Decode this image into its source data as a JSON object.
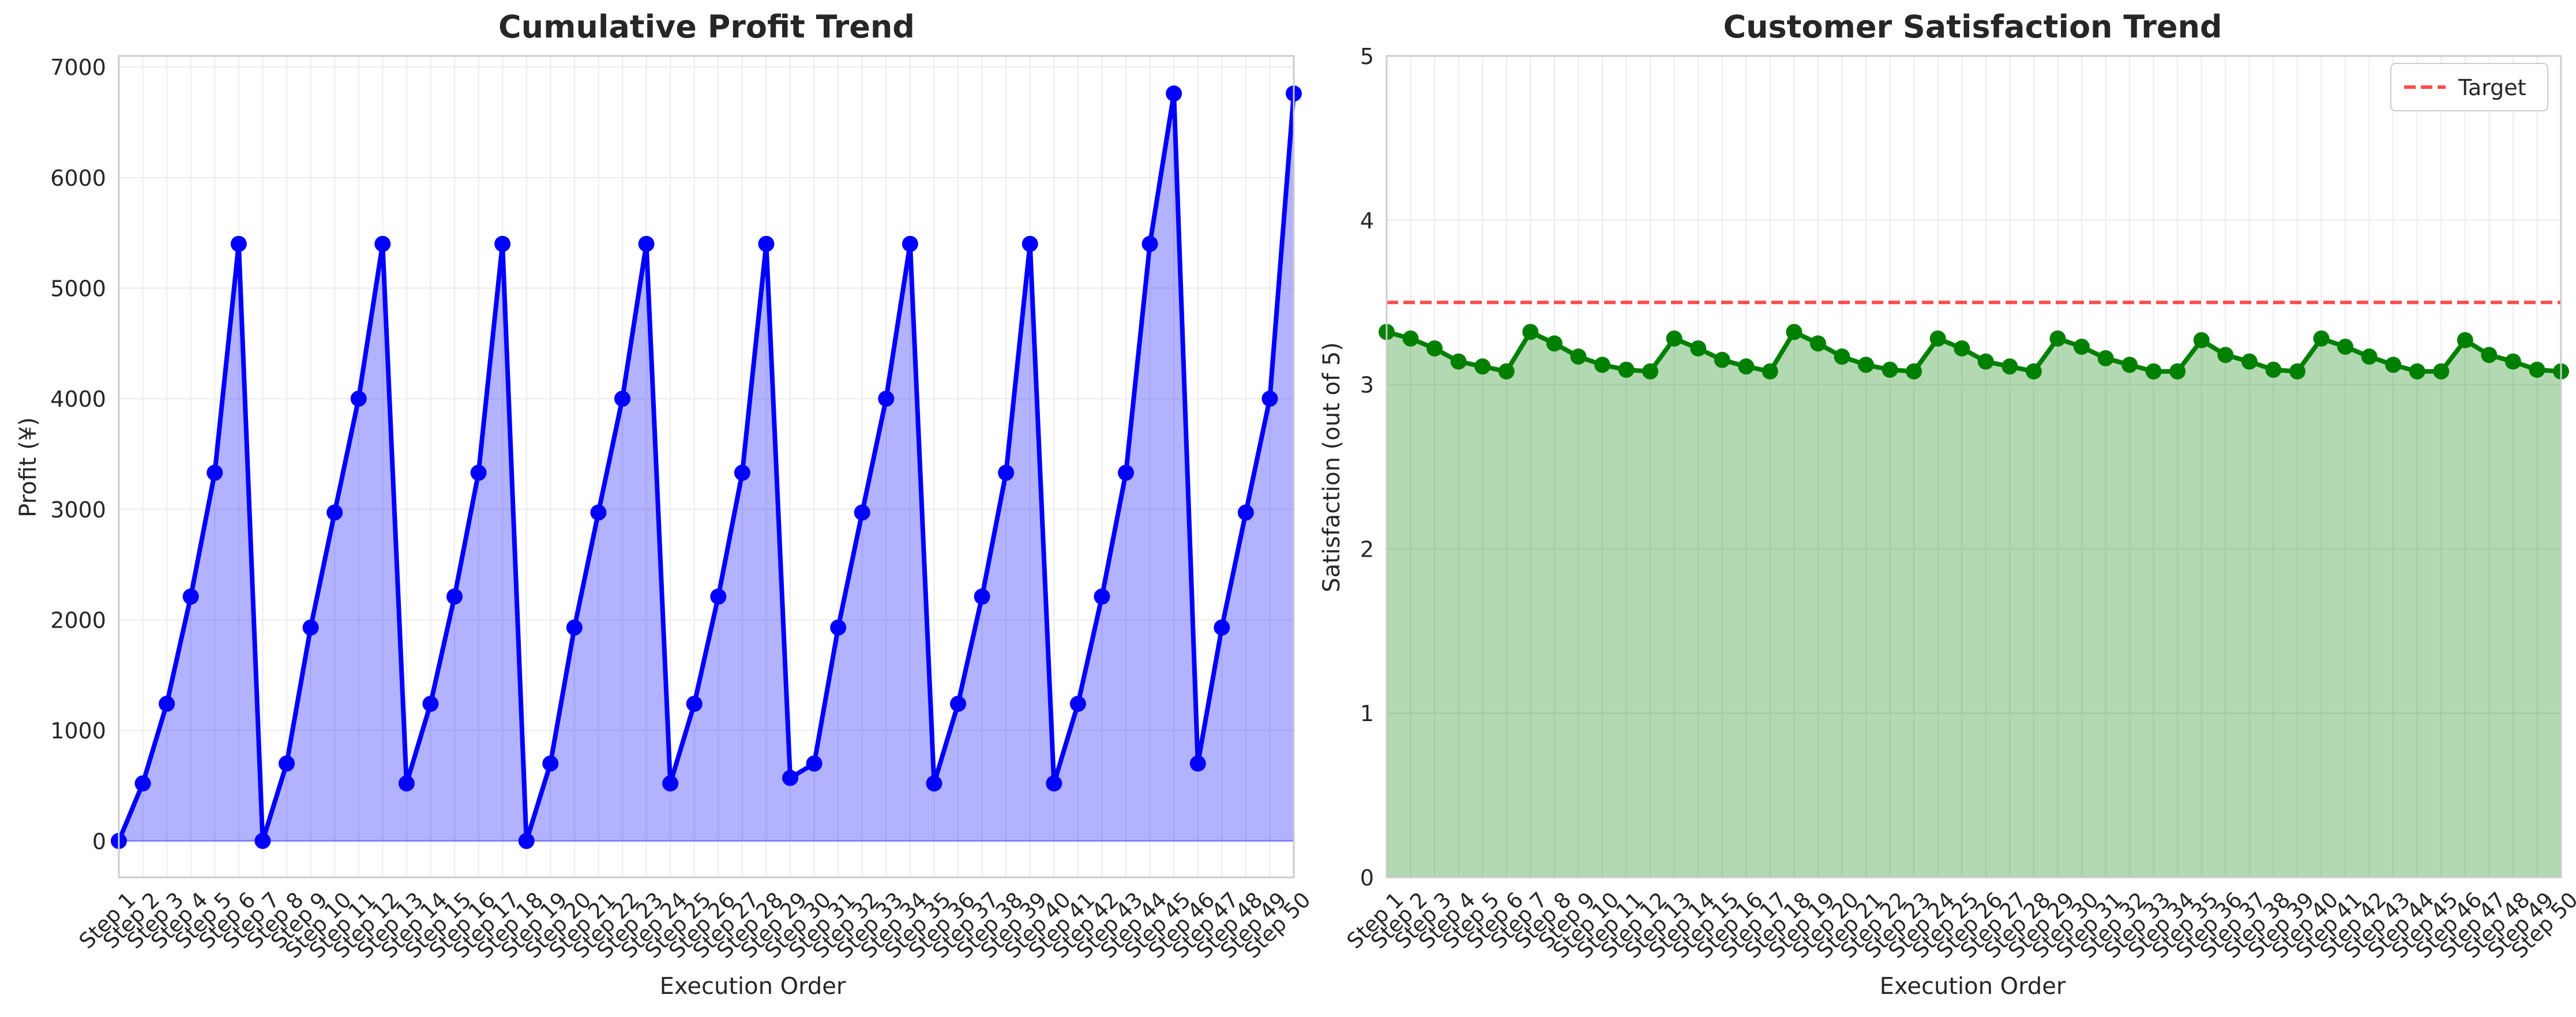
{
  "chart_data": [
    {
      "type": "area",
      "title": "Cumulative Profit Trend",
      "xlabel": "Execution Order",
      "ylabel": "Profit (¥)",
      "ylim": [
        -330,
        7100
      ],
      "yticks": [
        0,
        1000,
        2000,
        3000,
        4000,
        5000,
        6000,
        7000
      ],
      "grid": true,
      "categories": [
        "Step 1",
        "Step 2",
        "Step 3",
        "Step 4",
        "Step 5",
        "Step 6",
        "Step 7",
        "Step 8",
        "Step 9",
        "Step 10",
        "Step 11",
        "Step 12",
        "Step 13",
        "Step 14",
        "Step 15",
        "Step 16",
        "Step 17",
        "Step 18",
        "Step 19",
        "Step 20",
        "Step 21",
        "Step 22",
        "Step 23",
        "Step 24",
        "Step 25",
        "Step 26",
        "Step 27",
        "Step 28",
        "Step 29",
        "Step 30",
        "Step 31",
        "Step 32",
        "Step 33",
        "Step 34",
        "Step 35",
        "Step 36",
        "Step 37",
        "Step 38",
        "Step 39",
        "Step 40",
        "Step 41",
        "Step 42",
        "Step 43",
        "Step 44",
        "Step 45",
        "Step 46",
        "Step 47",
        "Step 48",
        "Step 49",
        "Step 50"
      ],
      "series": [
        {
          "color": "#0000ff",
          "fill_color": "#0000ff",
          "values": [
            0,
            520,
            1240,
            2210,
            3330,
            5400,
            0,
            700,
            1930,
            2970,
            4000,
            5400,
            520,
            1240,
            2210,
            3330,
            5400,
            0,
            700,
            1930,
            2970,
            4000,
            5400,
            520,
            1240,
            2210,
            3330,
            5400,
            570,
            700,
            1930,
            2970,
            4000,
            5400,
            520,
            1240,
            2210,
            3330,
            5400,
            520,
            1240,
            2210,
            3330,
            5400,
            6760,
            700,
            1930,
            2970,
            4000,
            6760
          ]
        }
      ]
    },
    {
      "type": "area",
      "title": "Customer Satisfaction Trend",
      "xlabel": "Execution Order",
      "ylabel": "Satisfaction (out of 5)",
      "ylim": [
        0,
        5
      ],
      "yticks": [
        0,
        1,
        2,
        3,
        4,
        5
      ],
      "grid": true,
      "legend_position": "top-right",
      "categories": [
        "Step 1",
        "Step 2",
        "Step 3",
        "Step 4",
        "Step 5",
        "Step 6",
        "Step 7",
        "Step 8",
        "Step 9",
        "Step 10",
        "Step 11",
        "Step 12",
        "Step 13",
        "Step 14",
        "Step 15",
        "Step 16",
        "Step 17",
        "Step 18",
        "Step 19",
        "Step 20",
        "Step 21",
        "Step 22",
        "Step 23",
        "Step 24",
        "Step 25",
        "Step 26",
        "Step 27",
        "Step 28",
        "Step 29",
        "Step 30",
        "Step 31",
        "Step 32",
        "Step 33",
        "Step 34",
        "Step 35",
        "Step 36",
        "Step 37",
        "Step 38",
        "Step 39",
        "Step 40",
        "Step 41",
        "Step 42",
        "Step 43",
        "Step 44",
        "Step 45",
        "Step 46",
        "Step 47",
        "Step 48",
        "Step 49",
        "Step 50"
      ],
      "series": [
        {
          "color": "#008000",
          "fill_color": "#008000",
          "values": [
            3.32,
            3.28,
            3.22,
            3.14,
            3.11,
            3.08,
            3.32,
            3.25,
            3.17,
            3.12,
            3.09,
            3.08,
            3.28,
            3.22,
            3.15,
            3.11,
            3.08,
            3.32,
            3.25,
            3.17,
            3.12,
            3.09,
            3.08,
            3.28,
            3.22,
            3.14,
            3.11,
            3.08,
            3.28,
            3.23,
            3.16,
            3.12,
            3.08,
            3.08,
            3.27,
            3.18,
            3.14,
            3.09,
            3.08,
            3.28,
            3.23,
            3.17,
            3.12,
            3.08,
            3.08,
            3.27,
            3.18,
            3.14,
            3.09,
            3.08
          ]
        }
      ],
      "reference_line": {
        "name": "Target",
        "value": 3.5,
        "color": "#ff0000"
      }
    }
  ]
}
